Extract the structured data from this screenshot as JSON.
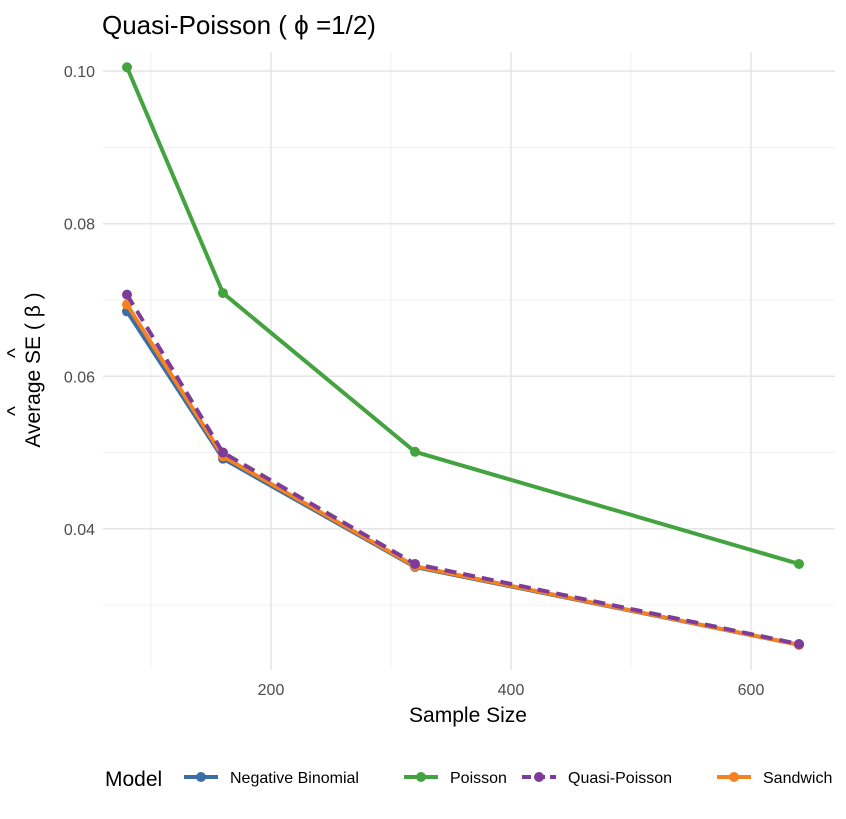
{
  "chart_data": {
    "type": "line",
    "title": "Quasi-Poisson ( ϕ =1/2)",
    "xlabel": "Sample Size",
    "ylabel": "Average SE ( β )",
    "ylabel_parts": {
      "prefix": "Average ",
      "se": "SE",
      "open": " ( ",
      "beta": "β",
      "close": " )",
      "hat": "^"
    },
    "xlim": [
      60,
      670
    ],
    "ylim": [
      0.0215,
      0.1025
    ],
    "x_ticks": [
      200,
      400,
      600
    ],
    "x_tick_labels": [
      "200",
      "400",
      "600"
    ],
    "x_minor": [
      100,
      300,
      500
    ],
    "y_ticks": [
      0.04,
      0.06,
      0.08,
      0.1
    ],
    "y_tick_labels": [
      "0.04",
      "0.06",
      "0.08",
      "0.10"
    ],
    "y_minor": [
      0.03,
      0.05,
      0.07,
      0.09
    ],
    "grid": true,
    "legend": {
      "title": "Model",
      "position": "bottom"
    },
    "x": [
      80,
      160,
      320,
      640
    ],
    "series": [
      {
        "name": "Negative Binomial",
        "color": "#3a6ea5",
        "dash": false,
        "values": [
          0.0685,
          0.0492,
          0.035,
          0.0248
        ]
      },
      {
        "name": "Poisson",
        "color": "#43a33f",
        "dash": false,
        "values": [
          0.1005,
          0.0709,
          0.0501,
          0.0354
        ]
      },
      {
        "name": "Quasi-Poisson",
        "color": "#7d3c98",
        "dash": true,
        "values": [
          0.0707,
          0.05,
          0.0354,
          0.0249
        ]
      },
      {
        "name": "Sandwich",
        "color": "#f58220",
        "dash": false,
        "values": [
          0.0694,
          0.0495,
          0.0351,
          0.0248
        ]
      }
    ]
  }
}
